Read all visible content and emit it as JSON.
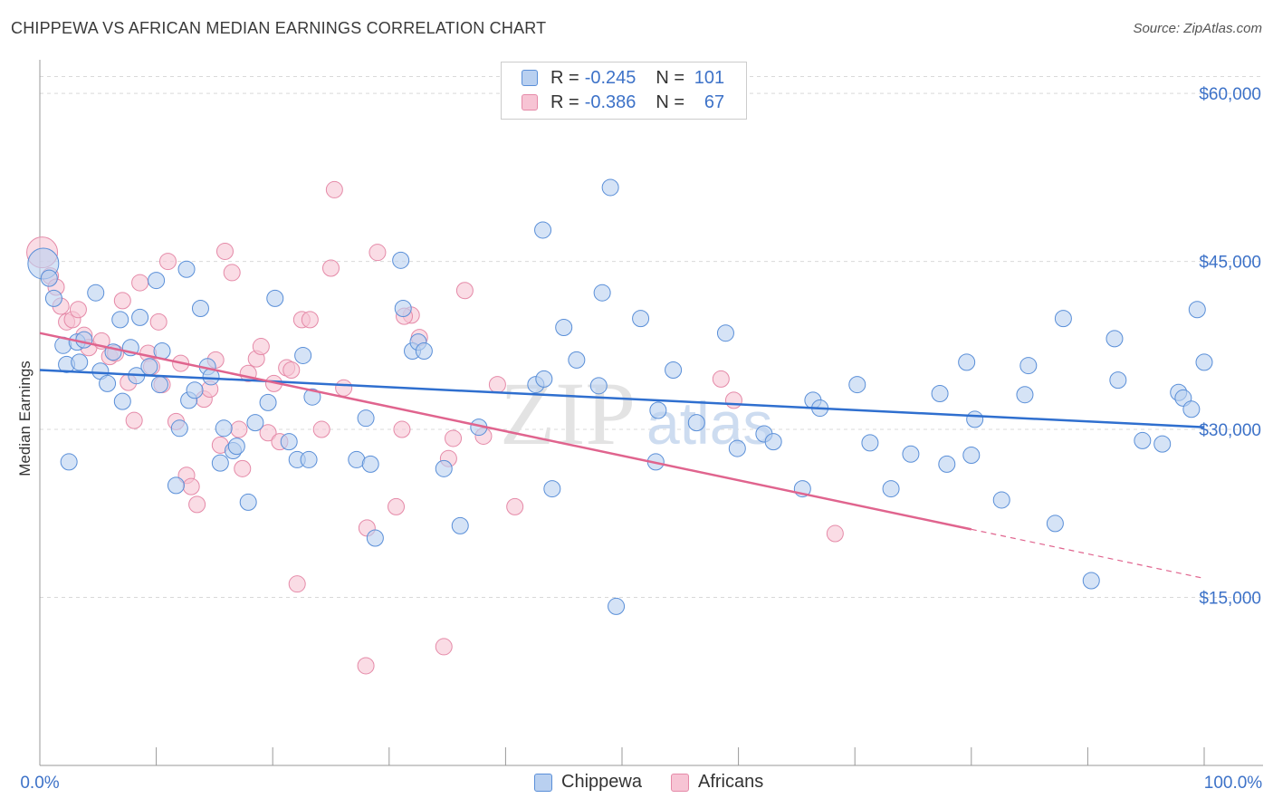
{
  "title": "CHIPPEWA VS AFRICAN MEDIAN EARNINGS CORRELATION CHART",
  "source": "Source: ZipAtlas.com",
  "watermark": {
    "zip": "ZIP",
    "atlas": "atlas"
  },
  "colors": {
    "chippewa_fill": "#b9d0f0",
    "chippewa_stroke": "#5a8fd8",
    "chippewa_line": "#2f6fcf",
    "africans_fill": "#f7c4d4",
    "africans_stroke": "#e58aa8",
    "africans_line": "#e0648e",
    "tick_label": "#3d72c8",
    "grid": "#d9d9d9"
  },
  "legend": {
    "rows": [
      {
        "r_label": "R =",
        "r_value": "-0.245",
        "n_label": "N =",
        "n_value": "101"
      },
      {
        "r_label": "R =",
        "r_value": "-0.386",
        "n_label": "N =",
        "n_value": "67"
      }
    ],
    "bottom": [
      "Chippewa",
      "Africans"
    ]
  },
  "chart_data": {
    "type": "scatter",
    "title": "CHIPPEWA VS AFRICAN MEDIAN EARNINGS CORRELATION CHART",
    "xlabel": "",
    "ylabel": "Median Earnings",
    "xlim": [
      0,
      100
    ],
    "ylim": [
      0,
      63000
    ],
    "x_tick_labels": {
      "left": "0.0%",
      "right": "100.0%"
    },
    "y_ticks": [
      {
        "value": 15000,
        "label": "$15,000"
      },
      {
        "value": 30000,
        "label": "$30,000"
      },
      {
        "value": 45000,
        "label": "$45,000"
      },
      {
        "value": 60000,
        "label": "$60,000"
      }
    ],
    "grid": true,
    "legend_position": "top-center",
    "series": [
      {
        "name": "Chippewa",
        "r": -0.245,
        "n": 101,
        "trend": {
          "x0": 0,
          "y0": 35300,
          "x1": 100,
          "y1": 30200,
          "solid_until": 100
        },
        "points": [
          [
            0.3,
            44800
          ],
          [
            0.8,
            43500
          ],
          [
            1.2,
            41700
          ],
          [
            2.0,
            37500
          ],
          [
            2.3,
            35800
          ],
          [
            2.5,
            27100
          ],
          [
            3.2,
            37800
          ],
          [
            3.4,
            36000
          ],
          [
            3.8,
            38000
          ],
          [
            4.8,
            42200
          ],
          [
            5.2,
            35200
          ],
          [
            5.8,
            34100
          ],
          [
            6.3,
            36900
          ],
          [
            6.9,
            39800
          ],
          [
            7.1,
            32500
          ],
          [
            7.8,
            37300
          ],
          [
            8.3,
            34800
          ],
          [
            8.6,
            40000
          ],
          [
            9.4,
            35600
          ],
          [
            10.0,
            43300
          ],
          [
            10.3,
            34000
          ],
          [
            10.5,
            37000
          ],
          [
            11.7,
            25000
          ],
          [
            12.0,
            30100
          ],
          [
            12.6,
            44300
          ],
          [
            12.8,
            32600
          ],
          [
            13.3,
            33500
          ],
          [
            13.8,
            40800
          ],
          [
            14.4,
            35600
          ],
          [
            14.7,
            34700
          ],
          [
            15.5,
            27000
          ],
          [
            15.8,
            30100
          ],
          [
            16.6,
            28100
          ],
          [
            16.9,
            28500
          ],
          [
            17.9,
            23500
          ],
          [
            18.5,
            30600
          ],
          [
            19.6,
            32400
          ],
          [
            20.2,
            41700
          ],
          [
            21.4,
            28900
          ],
          [
            22.1,
            27300
          ],
          [
            22.6,
            36600
          ],
          [
            23.1,
            27300
          ],
          [
            23.4,
            32900
          ],
          [
            27.2,
            27300
          ],
          [
            28.0,
            31000
          ],
          [
            28.4,
            26900
          ],
          [
            28.8,
            20300
          ],
          [
            31.0,
            45100
          ],
          [
            31.2,
            40800
          ],
          [
            32.0,
            37000
          ],
          [
            32.5,
            37800
          ],
          [
            33.0,
            37000
          ],
          [
            34.7,
            26500
          ],
          [
            36.1,
            21400
          ],
          [
            37.7,
            30200
          ],
          [
            42.6,
            34000
          ],
          [
            43.2,
            47800
          ],
          [
            43.3,
            34500
          ],
          [
            44.0,
            24700
          ],
          [
            45.0,
            39100
          ],
          [
            46.1,
            36200
          ],
          [
            48.0,
            33900
          ],
          [
            48.3,
            42200
          ],
          [
            49.0,
            51600
          ],
          [
            49.5,
            14200
          ],
          [
            51.6,
            39900
          ],
          [
            52.9,
            27100
          ],
          [
            53.1,
            31700
          ],
          [
            54.4,
            35300
          ],
          [
            56.4,
            30600
          ],
          [
            58.9,
            38600
          ],
          [
            59.9,
            28300
          ],
          [
            62.2,
            29600
          ],
          [
            63.0,
            28900
          ],
          [
            65.5,
            24700
          ],
          [
            66.4,
            32600
          ],
          [
            67.0,
            31900
          ],
          [
            70.2,
            34000
          ],
          [
            71.3,
            28800
          ],
          [
            73.1,
            24700
          ],
          [
            74.8,
            27800
          ],
          [
            77.3,
            33200
          ],
          [
            77.9,
            26900
          ],
          [
            79.6,
            36000
          ],
          [
            80.0,
            27700
          ],
          [
            80.3,
            30900
          ],
          [
            82.6,
            23700
          ],
          [
            84.6,
            33100
          ],
          [
            84.9,
            35700
          ],
          [
            87.2,
            21600
          ],
          [
            87.9,
            39900
          ],
          [
            90.3,
            16500
          ],
          [
            92.3,
            38100
          ],
          [
            92.6,
            34400
          ],
          [
            94.7,
            29000
          ],
          [
            96.4,
            28700
          ],
          [
            97.8,
            33300
          ],
          [
            98.2,
            32800
          ],
          [
            98.9,
            31800
          ],
          [
            99.4,
            40700
          ],
          [
            100.0,
            36000
          ]
        ]
      },
      {
        "name": "Africans",
        "r": -0.386,
        "n": 67,
        "trend": {
          "x0": 0,
          "y0": 38600,
          "x1": 100,
          "y1": 16700,
          "solid_until": 80
        },
        "points": [
          [
            0.2,
            45800
          ],
          [
            0.9,
            43700
          ],
          [
            1.4,
            42700
          ],
          [
            1.8,
            41000
          ],
          [
            2.3,
            39600
          ],
          [
            2.8,
            39800
          ],
          [
            3.3,
            40700
          ],
          [
            3.8,
            38400
          ],
          [
            4.2,
            37300
          ],
          [
            5.3,
            37900
          ],
          [
            6.0,
            36500
          ],
          [
            6.5,
            36800
          ],
          [
            7.1,
            41500
          ],
          [
            7.6,
            34200
          ],
          [
            8.1,
            30800
          ],
          [
            8.6,
            43100
          ],
          [
            9.3,
            36800
          ],
          [
            9.6,
            35600
          ],
          [
            10.2,
            39600
          ],
          [
            10.5,
            34000
          ],
          [
            11.0,
            45000
          ],
          [
            11.7,
            30700
          ],
          [
            12.1,
            35900
          ],
          [
            12.6,
            25900
          ],
          [
            13.0,
            24900
          ],
          [
            13.5,
            23300
          ],
          [
            14.1,
            32700
          ],
          [
            14.6,
            33600
          ],
          [
            15.1,
            36200
          ],
          [
            15.5,
            28600
          ],
          [
            15.9,
            45900
          ],
          [
            16.5,
            44000
          ],
          [
            17.1,
            30000
          ],
          [
            17.4,
            26500
          ],
          [
            17.9,
            35000
          ],
          [
            18.6,
            36300
          ],
          [
            19.0,
            37400
          ],
          [
            19.6,
            29700
          ],
          [
            20.1,
            34100
          ],
          [
            20.6,
            28900
          ],
          [
            21.2,
            35500
          ],
          [
            21.6,
            35300
          ],
          [
            22.1,
            16200
          ],
          [
            22.5,
            39800
          ],
          [
            23.2,
            39800
          ],
          [
            24.2,
            30000
          ],
          [
            25.0,
            44400
          ],
          [
            25.3,
            51400
          ],
          [
            26.1,
            33700
          ],
          [
            28.1,
            21200
          ],
          [
            29.0,
            45800
          ],
          [
            30.6,
            23100
          ],
          [
            31.1,
            30000
          ],
          [
            31.9,
            40200
          ],
          [
            32.6,
            38200
          ],
          [
            34.7,
            10600
          ],
          [
            35.1,
            27400
          ],
          [
            35.5,
            29200
          ],
          [
            36.5,
            42400
          ],
          [
            38.1,
            29400
          ],
          [
            39.3,
            34000
          ],
          [
            40.8,
            23100
          ],
          [
            58.5,
            34500
          ],
          [
            59.6,
            32600
          ],
          [
            68.3,
            20700
          ],
          [
            28.0,
            8900
          ],
          [
            31.3,
            40100
          ]
        ]
      }
    ]
  }
}
